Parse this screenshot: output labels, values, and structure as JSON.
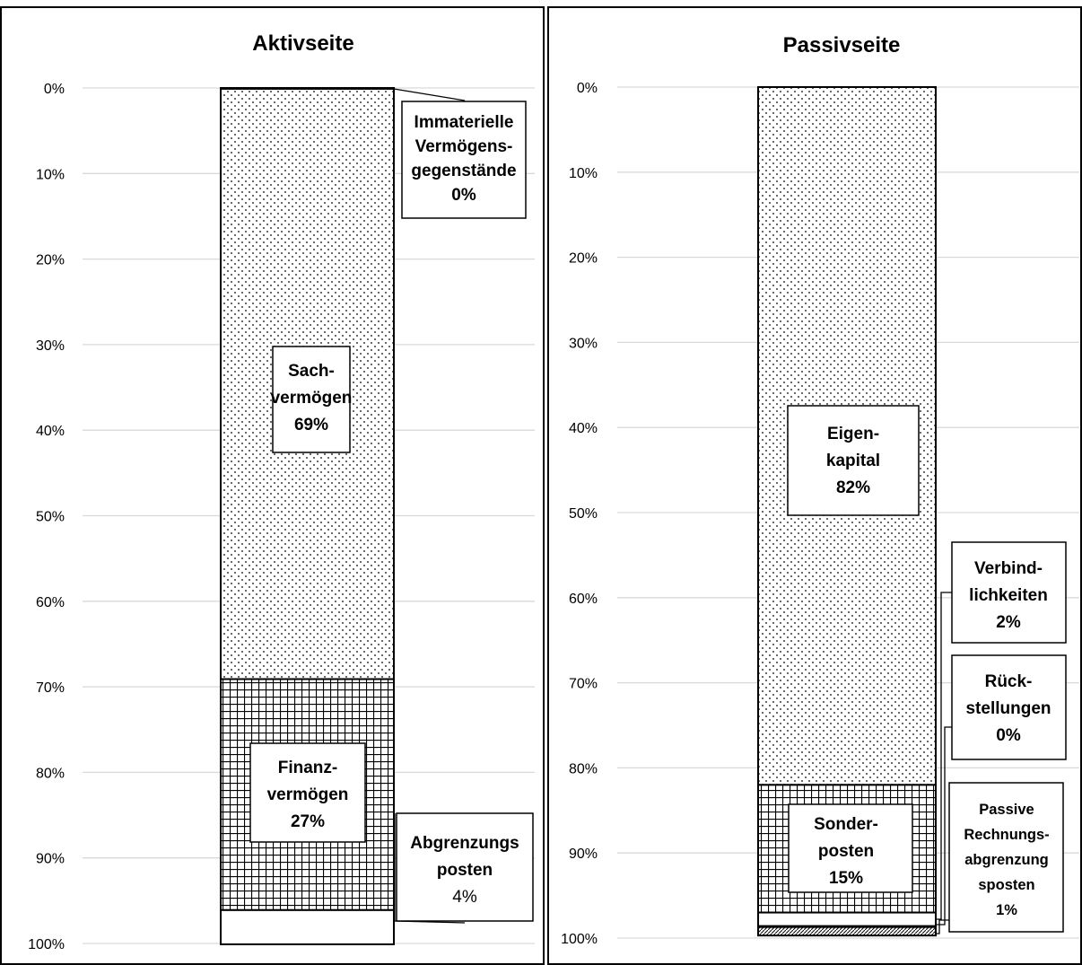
{
  "chart_data": [
    {
      "type": "bar",
      "title": "Aktivseite",
      "stacked": true,
      "ylim": [
        0,
        100
      ],
      "y_ticks": [
        "0%",
        "10%",
        "20%",
        "30%",
        "40%",
        "50%",
        "60%",
        "70%",
        "80%",
        "90%",
        "100%"
      ],
      "y_axis_reversed": true,
      "grid": true,
      "series": [
        {
          "lines": [
            "Immaterielle",
            "Vermögens-",
            "gegenstände",
            "0%"
          ],
          "value": 0.1,
          "pattern": "none"
        },
        {
          "lines": [
            "Sach-",
            "vermögen",
            "69%"
          ],
          "value": 69,
          "pattern": "dots"
        },
        {
          "lines": [
            "Finanz-",
            "vermögen",
            "27%"
          ],
          "value": 27,
          "pattern": "grid"
        },
        {
          "lines": [
            "Abgrenzungs",
            "posten",
            "4%"
          ],
          "value": 4,
          "pattern": "none"
        }
      ]
    },
    {
      "type": "bar",
      "title": "Passivseite",
      "stacked": true,
      "ylim": [
        0,
        100
      ],
      "y_ticks": [
        "0%",
        "10%",
        "20%",
        "30%",
        "40%",
        "50%",
        "60%",
        "70%",
        "80%",
        "90%",
        "100%"
      ],
      "y_axis_reversed": true,
      "grid": true,
      "series": [
        {
          "lines": [
            "Eigen-",
            "kapital",
            "82%"
          ],
          "value": 82,
          "pattern": "dots"
        },
        {
          "lines": [
            "Sonder-",
            "posten",
            "15%"
          ],
          "value": 15,
          "pattern": "grid"
        },
        {
          "lines": [
            "Verbind-",
            "lichkeiten",
            "2%"
          ],
          "value": 1.6,
          "pattern": "none"
        },
        {
          "lines": [
            "Rück-",
            "stellungen",
            "0%"
          ],
          "value": 0.1,
          "pattern": "none"
        },
        {
          "lines": [
            "Passive",
            "Rechnungs-",
            "abgrenzung",
            "sposten",
            "1%"
          ],
          "value": 1,
          "pattern": "hatch"
        }
      ]
    }
  ],
  "colors": {
    "ink": "#000000",
    "grid": "#d9d9d9",
    "background": "#ffffff"
  }
}
